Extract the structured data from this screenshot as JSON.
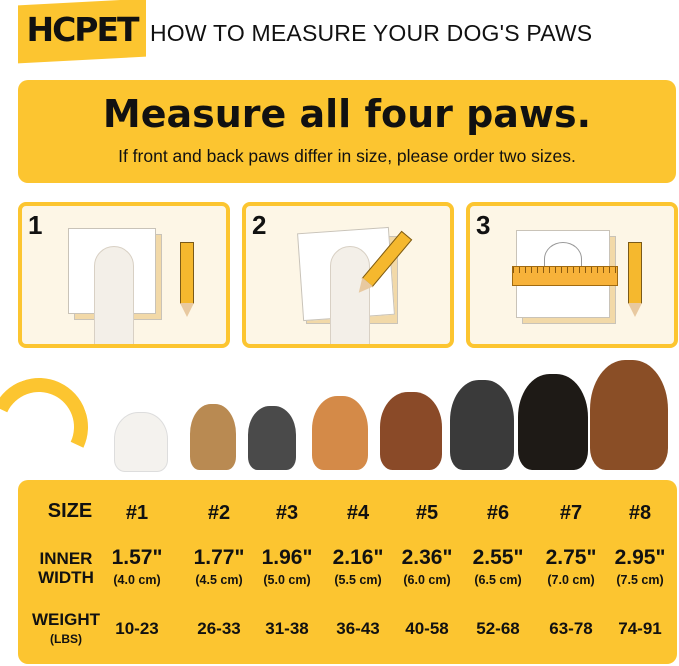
{
  "brand": "HCPET",
  "title": "HOW TO MEASURE YOUR DOG'S PAWS",
  "banner": {
    "heading": "Measure all four paws.",
    "subheading": "If front and back paws differ in size, please order two sizes."
  },
  "steps": [
    {
      "number": "1"
    },
    {
      "number": "2"
    },
    {
      "number": "3"
    }
  ],
  "colors": {
    "accent": "#fcc530",
    "cream": "#fdf6e6",
    "text": "#111111"
  },
  "table": {
    "labels": {
      "size": "SIZE",
      "inner1": "INNER",
      "inner2": "WIDTH",
      "weight": "WEIGHT",
      "weight_unit": "(LBS)"
    },
    "columns": [
      {
        "size": "#1",
        "inch": "1.57\"",
        "cm": "(4.0 cm)",
        "weight": "10-23"
      },
      {
        "size": "#2",
        "inch": "1.77\"",
        "cm": "(4.5 cm)",
        "weight": "26-33"
      },
      {
        "size": "#3",
        "inch": "1.96\"",
        "cm": "(5.0 cm)",
        "weight": "31-38"
      },
      {
        "size": "#4",
        "inch": "2.16\"",
        "cm": "(5.5 cm)",
        "weight": "36-43"
      },
      {
        "size": "#5",
        "inch": "2.36\"",
        "cm": "(6.0 cm)",
        "weight": "40-58"
      },
      {
        "size": "#6",
        "inch": "2.55\"",
        "cm": "(6.5 cm)",
        "weight": "52-68"
      },
      {
        "size": "#7",
        "inch": "2.75\"",
        "cm": "(7.0 cm)",
        "weight": "63-78"
      },
      {
        "size": "#8",
        "inch": "2.95\"",
        "cm": "(7.5 cm)",
        "weight": "74-91"
      }
    ]
  }
}
